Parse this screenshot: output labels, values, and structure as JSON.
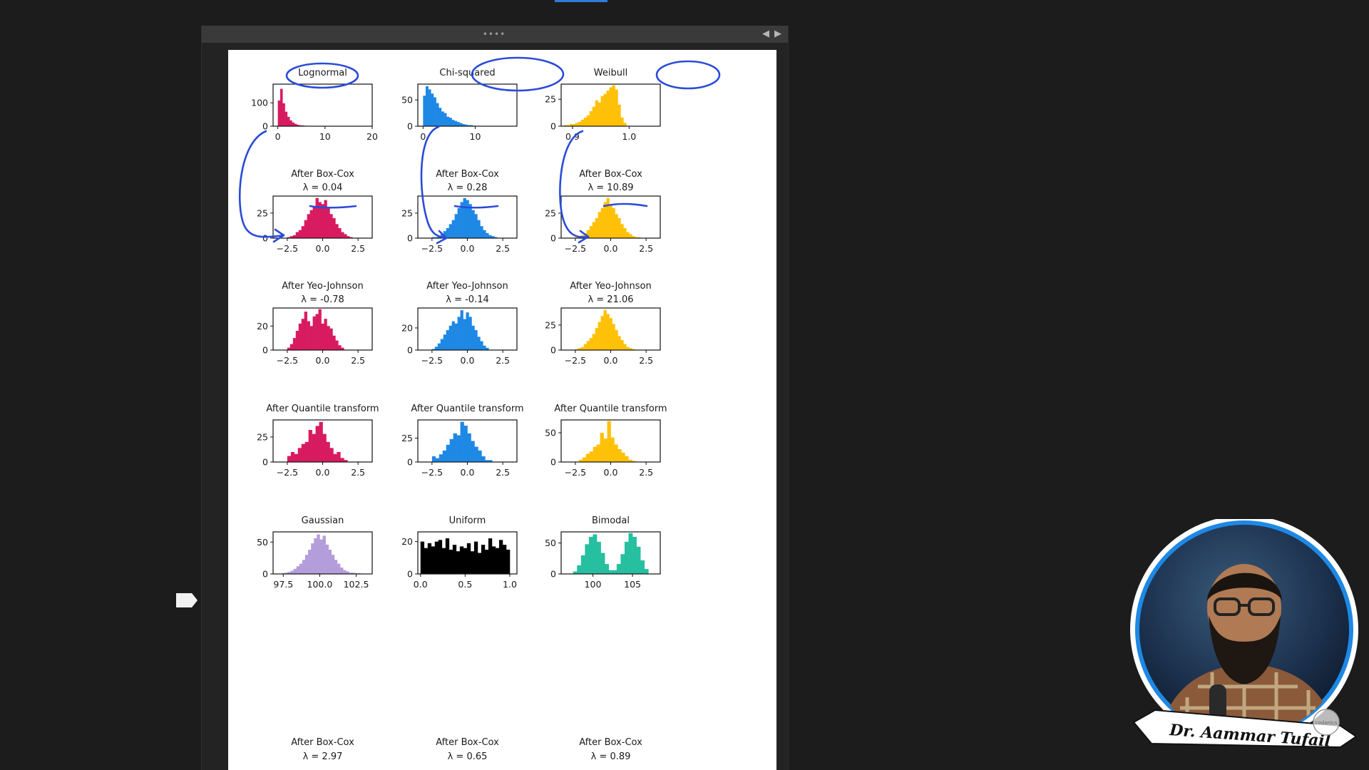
{
  "window": {
    "grip_label": "••••",
    "prev_label": "◀",
    "next_label": "▶"
  },
  "webcam": {
    "presenter_name": "Dr. Aammar Tufail",
    "channel_badge": "codanics",
    "ring_color": "#1e88e5"
  },
  "colors": {
    "lognormal": "#d81b60",
    "chi_squared": "#1e88e5",
    "weibull": "#ffc107",
    "gaussian": "#b39ddb",
    "uniform": "#000000",
    "bimodal": "#26bfa0",
    "annotation": "#2b4bd8"
  },
  "chart_data": [
    {
      "type": "histogram",
      "row": 0,
      "col": 0,
      "title": "Lognormal",
      "subtitle": "",
      "color": "lognormal",
      "xlim": [
        -1,
        20
      ],
      "ylim": [
        0,
        180
      ],
      "xticks": [
        {
          "v": 0,
          "label": "0"
        },
        {
          "v": 10,
          "label": "10"
        },
        {
          "v": 20,
          "label": "20"
        }
      ],
      "yticks": [
        {
          "v": 0,
          "label": "0"
        },
        {
          "v": 100,
          "label": "100"
        }
      ],
      "bins": {
        "start": 0,
        "width": 0.5,
        "values": [
          110,
          160,
          98,
          62,
          40,
          25,
          16,
          10,
          6,
          4,
          3,
          2,
          1,
          1
        ]
      }
    },
    {
      "type": "histogram",
      "row": 0,
      "col": 1,
      "title": "Chi-squared",
      "subtitle": "",
      "color": "chi_squared",
      "xlim": [
        -1,
        18
      ],
      "ylim": [
        0,
        80
      ],
      "xticks": [
        {
          "v": 0,
          "label": "0"
        },
        {
          "v": 10,
          "label": "10"
        }
      ],
      "yticks": [
        {
          "v": 0,
          "label": "0"
        },
        {
          "v": 50,
          "label": "50"
        }
      ],
      "bins": {
        "start": 0,
        "width": 0.5,
        "values": [
          58,
          76,
          70,
          62,
          55,
          44,
          35,
          28,
          25,
          18,
          16,
          12,
          10,
          8,
          6,
          4,
          3,
          2,
          2,
          1
        ]
      }
    },
    {
      "type": "histogram",
      "row": 0,
      "col": 2,
      "title": "Weibull",
      "subtitle": "",
      "color": "weibull",
      "xlim": [
        0.88,
        1.055
      ],
      "ylim": [
        0,
        39
      ],
      "xticks": [
        {
          "v": 0.9,
          "label": "0.9"
        },
        {
          "v": 1.0,
          "label": "1.0"
        }
      ],
      "yticks": [
        {
          "v": 0,
          "label": "0"
        },
        {
          "v": 25,
          "label": "25"
        }
      ],
      "bins": {
        "start": 0.885,
        "width": 0.005,
        "values": [
          1,
          1,
          2,
          2,
          3,
          4,
          6,
          8,
          10,
          14,
          18,
          24,
          22,
          28,
          30,
          33,
          36,
          38,
          34,
          20,
          8,
          3
        ]
      }
    },
    {
      "type": "histogram",
      "row": 1,
      "col": 0,
      "title": "After Box-Cox",
      "subtitle": "λ = 0.04",
      "color": "lognormal",
      "xlim": [
        -3.5,
        3.5
      ],
      "ylim": [
        0,
        42
      ],
      "xticks": [
        {
          "v": -2.5,
          "label": "−2.5"
        },
        {
          "v": 0,
          "label": "0.0"
        },
        {
          "v": 2.5,
          "label": "2.5"
        }
      ],
      "yticks": [
        {
          "v": 0,
          "label": "0"
        },
        {
          "v": 25,
          "label": "25"
        }
      ],
      "bins": {
        "start": -2.5,
        "width": 0.2,
        "values": [
          1,
          2,
          3,
          6,
          8,
          12,
          18,
          24,
          28,
          32,
          40,
          36,
          34,
          38,
          30,
          24,
          20,
          14,
          10,
          6,
          4,
          2,
          1
        ]
      }
    },
    {
      "type": "histogram",
      "row": 1,
      "col": 1,
      "title": "After Box-Cox",
      "subtitle": "λ = 0.28",
      "color": "chi_squared",
      "xlim": [
        -3.5,
        3.5
      ],
      "ylim": [
        0,
        42
      ],
      "xticks": [
        {
          "v": -2.5,
          "label": "−2.5"
        },
        {
          "v": 0,
          "label": "0.0"
        },
        {
          "v": 2.5,
          "label": "2.5"
        }
      ],
      "yticks": [
        {
          "v": 0,
          "label": "0"
        },
        {
          "v": 25,
          "label": "25"
        }
      ],
      "bins": {
        "start": -2.5,
        "width": 0.2,
        "values": [
          1,
          1,
          2,
          4,
          7,
          10,
          14,
          18,
          24,
          30,
          36,
          40,
          38,
          34,
          28,
          24,
          18,
          12,
          8,
          5,
          3,
          2,
          1
        ]
      }
    },
    {
      "type": "histogram",
      "row": 1,
      "col": 2,
      "title": "After Box-Cox",
      "subtitle": "λ = 10.89",
      "color": "weibull",
      "xlim": [
        -3.5,
        3.5
      ],
      "ylim": [
        0,
        42
      ],
      "xticks": [
        {
          "v": -2.5,
          "label": "−2.5"
        },
        {
          "v": 0,
          "label": "0.0"
        },
        {
          "v": 2.5,
          "label": "2.5"
        }
      ],
      "yticks": [
        {
          "v": 0,
          "label": "0"
        },
        {
          "v": 25,
          "label": "25"
        }
      ],
      "bins": {
        "start": -2.5,
        "width": 0.2,
        "values": [
          1,
          2,
          3,
          5,
          8,
          12,
          16,
          20,
          26,
          30,
          36,
          40,
          34,
          30,
          24,
          20,
          14,
          10,
          6,
          4,
          2,
          1,
          1
        ]
      }
    },
    {
      "type": "histogram",
      "row": 2,
      "col": 0,
      "title": "After Yeo-Johnson",
      "subtitle": "λ = -0.78",
      "color": "lognormal",
      "xlim": [
        -3.5,
        3.5
      ],
      "ylim": [
        0,
        35
      ],
      "xticks": [
        {
          "v": -2.5,
          "label": "−2.5"
        },
        {
          "v": 0,
          "label": "0.0"
        },
        {
          "v": 2.5,
          "label": "2.5"
        }
      ],
      "yticks": [
        {
          "v": 0,
          "label": "0"
        },
        {
          "v": 20,
          "label": "20"
        }
      ],
      "bins": {
        "start": -2.5,
        "width": 0.2,
        "values": [
          2,
          5,
          10,
          16,
          22,
          26,
          32,
          24,
          20,
          28,
          30,
          34,
          22,
          26,
          20,
          18,
          12,
          8,
          4,
          2
        ]
      }
    },
    {
      "type": "histogram",
      "row": 2,
      "col": 1,
      "title": "After Yeo-Johnson",
      "subtitle": "λ = -0.14",
      "color": "chi_squared",
      "xlim": [
        -3.5,
        3.5
      ],
      "ylim": [
        0,
        38
      ],
      "xticks": [
        {
          "v": -2.5,
          "label": "−2.5"
        },
        {
          "v": 0,
          "label": "0.0"
        },
        {
          "v": 2.5,
          "label": "2.5"
        }
      ],
      "yticks": [
        {
          "v": 0,
          "label": "0"
        },
        {
          "v": 20,
          "label": "20"
        }
      ],
      "bins": {
        "start": -2.5,
        "width": 0.2,
        "values": [
          1,
          3,
          6,
          10,
          14,
          18,
          22,
          26,
          24,
          30,
          36,
          28,
          34,
          30,
          22,
          18,
          12,
          8,
          4,
          2
        ]
      }
    },
    {
      "type": "histogram",
      "row": 2,
      "col": 2,
      "title": "After Yeo-Johnson",
      "subtitle": "λ = 21.06",
      "color": "weibull",
      "xlim": [
        -3.5,
        3.5
      ],
      "ylim": [
        0,
        42
      ],
      "xticks": [
        {
          "v": -2.5,
          "label": "−2.5"
        },
        {
          "v": 0,
          "label": "0.0"
        },
        {
          "v": 2.5,
          "label": "2.5"
        }
      ],
      "yticks": [
        {
          "v": 0,
          "label": "0"
        },
        {
          "v": 25,
          "label": "25"
        }
      ],
      "bins": {
        "start": -2.5,
        "width": 0.2,
        "values": [
          1,
          2,
          3,
          6,
          9,
          12,
          16,
          22,
          28,
          34,
          40,
          36,
          32,
          26,
          20,
          14,
          10,
          6,
          3,
          2,
          1
        ]
      }
    },
    {
      "type": "histogram",
      "row": 3,
      "col": 0,
      "title": "After Quantile transform",
      "subtitle": "",
      "color": "lognormal",
      "xlim": [
        -3.5,
        3.5
      ],
      "ylim": [
        0,
        42
      ],
      "xticks": [
        {
          "v": -2.5,
          "label": "−2.5"
        },
        {
          "v": 0,
          "label": "0.0"
        },
        {
          "v": 2.5,
          "label": "2.5"
        }
      ],
      "yticks": [
        {
          "v": 0,
          "label": "0"
        },
        {
          "v": 25,
          "label": "25"
        }
      ],
      "bins": {
        "start": -2.5,
        "width": 0.25,
        "values": [
          6,
          10,
          8,
          14,
          18,
          20,
          32,
          28,
          36,
          40,
          28,
          20,
          14,
          8,
          10,
          4,
          2
        ]
      }
    },
    {
      "type": "histogram",
      "row": 3,
      "col": 1,
      "title": "After Quantile transform",
      "subtitle": "",
      "color": "chi_squared",
      "xlim": [
        -3.5,
        3.5
      ],
      "ylim": [
        0,
        44
      ],
      "xticks": [
        {
          "v": -2.5,
          "label": "−2.5"
        },
        {
          "v": 0,
          "label": "0.0"
        },
        {
          "v": 2.5,
          "label": "2.5"
        }
      ],
      "yticks": [
        {
          "v": 0,
          "label": "0"
        },
        {
          "v": 25,
          "label": "25"
        }
      ],
      "bins": {
        "start": -2.5,
        "width": 0.25,
        "values": [
          6,
          4,
          8,
          12,
          18,
          24,
          30,
          28,
          42,
          38,
          30,
          22,
          16,
          12,
          6,
          2,
          2
        ]
      }
    },
    {
      "type": "histogram",
      "row": 3,
      "col": 2,
      "title": "After Quantile transform",
      "subtitle": "",
      "color": "weibull",
      "xlim": [
        -3.5,
        3.5
      ],
      "ylim": [
        0,
        72
      ],
      "xticks": [
        {
          "v": -2.5,
          "label": "−2.5"
        },
        {
          "v": 0,
          "label": "0.0"
        },
        {
          "v": 2.5,
          "label": "2.5"
        }
      ],
      "yticks": [
        {
          "v": 0,
          "label": "0"
        },
        {
          "v": 50,
          "label": "50"
        }
      ],
      "bins": {
        "start": -2.25,
        "width": 0.25,
        "values": [
          4,
          8,
          14,
          18,
          26,
          30,
          50,
          40,
          70,
          42,
          30,
          22,
          16,
          10,
          4,
          2
        ]
      }
    },
    {
      "type": "histogram",
      "row": 4,
      "col": 0,
      "title": "Gaussian",
      "subtitle": "",
      "color": "gaussian",
      "xlim": [
        96.8,
        103.6
      ],
      "ylim": [
        0,
        66
      ],
      "xticks": [
        {
          "v": 97.5,
          "label": "97.5"
        },
        {
          "v": 100.0,
          "label": "100.0"
        },
        {
          "v": 102.5,
          "label": "102.5"
        }
      ],
      "yticks": [
        {
          "v": 0,
          "label": "0"
        },
        {
          "v": 50,
          "label": "50"
        }
      ],
      "bins": {
        "start": 97.4,
        "width": 0.2,
        "values": [
          1,
          2,
          3,
          5,
          8,
          12,
          16,
          22,
          30,
          38,
          48,
          56,
          62,
          54,
          60,
          46,
          38,
          30,
          22,
          16,
          10,
          6,
          4,
          2,
          2,
          1,
          1
        ]
      }
    },
    {
      "type": "histogram",
      "row": 4,
      "col": 1,
      "title": "Uniform",
      "subtitle": "",
      "color": "uniform",
      "xlim": [
        -0.03,
        1.08
      ],
      "ylim": [
        0,
        26
      ],
      "xticks": [
        {
          "v": 0,
          "label": "0.0"
        },
        {
          "v": 0.5,
          "label": "0.5"
        },
        {
          "v": 1.0,
          "label": "1.0"
        }
      ],
      "yticks": [
        {
          "v": 0,
          "label": "0"
        },
        {
          "v": 20,
          "label": "20"
        }
      ],
      "bins": {
        "start": 0,
        "width": 0.04,
        "values": [
          20,
          16,
          19,
          17,
          20,
          21,
          16,
          22,
          15,
          18,
          14,
          17,
          16,
          19,
          14,
          20,
          13,
          18,
          15,
          22,
          17,
          16,
          21,
          18,
          15
        ]
      }
    },
    {
      "type": "histogram",
      "row": 4,
      "col": 2,
      "title": "Bimodal",
      "subtitle": "",
      "color": "bimodal",
      "xlim": [
        96,
        108.5
      ],
      "ylim": [
        0,
        68
      ],
      "xticks": [
        {
          "v": 100,
          "label": "100"
        },
        {
          "v": 105,
          "label": "105"
        }
      ],
      "yticks": [
        {
          "v": 0,
          "label": "0"
        },
        {
          "v": 50,
          "label": "50"
        }
      ],
      "bins": {
        "start": 97.5,
        "width": 0.5,
        "values": [
          4,
          14,
          30,
          48,
          60,
          64,
          52,
          34,
          16,
          6,
          6,
          16,
          32,
          52,
          66,
          60,
          44,
          22,
          8
        ]
      }
    }
  ],
  "footer_titles": [
    {
      "title": "After Box-Cox",
      "subtitle": "λ = 2.97"
    },
    {
      "title": "After Box-Cox",
      "subtitle": "λ = 0.65"
    },
    {
      "title": "After Box-Cox",
      "subtitle": "λ = 0.89"
    }
  ]
}
